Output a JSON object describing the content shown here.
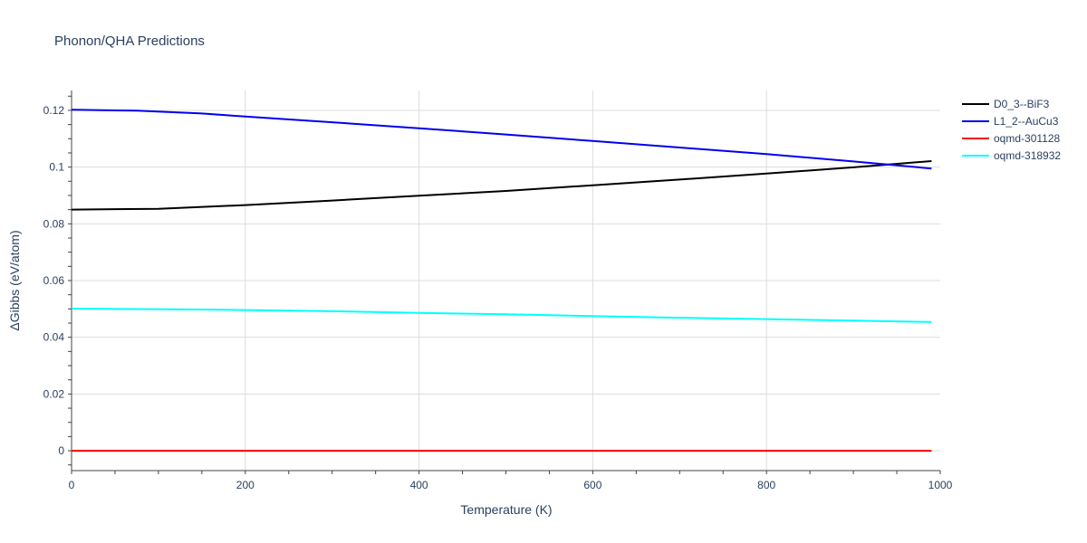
{
  "chart_data": {
    "type": "line",
    "title": "Phonon/QHA Predictions",
    "xlabel": "Temperature (K)",
    "ylabel": "ΔGibbs (eV/atom)",
    "xlim": [
      0,
      1000
    ],
    "ylim": [
      -0.007,
      0.127
    ],
    "xticks": [
      "0",
      "200",
      "400",
      "600",
      "800",
      "1000"
    ],
    "yticks": [
      "0",
      "0.02",
      "0.04",
      "0.06",
      "0.08",
      "0.1",
      "0.12"
    ],
    "grid": true,
    "legend_position": "top-right",
    "series": [
      {
        "name": "D0_3--BiF3",
        "color": "#000000",
        "x": [
          0,
          100,
          200,
          300,
          400,
          500,
          600,
          700,
          800,
          900,
          990
        ],
        "y": [
          0.085,
          0.0853,
          0.0866,
          0.0882,
          0.0899,
          0.0916,
          0.0936,
          0.0956,
          0.0977,
          0.0999,
          0.1021
        ]
      },
      {
        "name": "L1_2--AuCu3",
        "color": "#0000ee",
        "x": [
          0,
          75,
          150,
          200,
          300,
          400,
          500,
          600,
          700,
          800,
          900,
          990
        ],
        "y": [
          0.1202,
          0.1199,
          0.1189,
          0.1178,
          0.1158,
          0.1137,
          0.1115,
          0.1092,
          0.1069,
          0.1046,
          0.102,
          0.0995
        ]
      },
      {
        "name": "oqmd-301128",
        "color": "#ff0000",
        "x": [
          0,
          990
        ],
        "y": [
          0,
          0
        ]
      },
      {
        "name": "oqmd-318932",
        "color": "#00ffff",
        "x": [
          0,
          150,
          300,
          400,
          500,
          600,
          700,
          800,
          900,
          990
        ],
        "y": [
          0.0501,
          0.0498,
          0.0492,
          0.0486,
          0.0481,
          0.0475,
          0.0469,
          0.0464,
          0.0459,
          0.0454
        ]
      }
    ]
  }
}
